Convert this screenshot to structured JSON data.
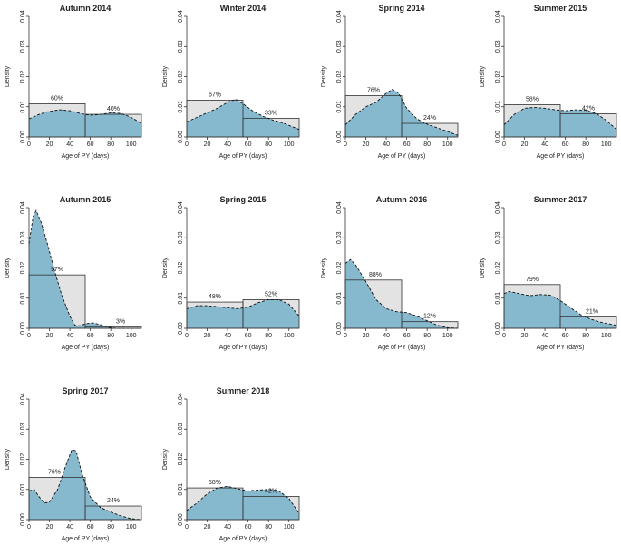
{
  "colors": {
    "bar": "#e3e3e3",
    "density": "#86b8ce",
    "line": "#111111"
  },
  "chart_data": {
    "type": "histogram-density-panels",
    "xlabel": "Age of PY (days)",
    "ylabel": "Density",
    "xlim": [
      0,
      110
    ],
    "ylim": [
      0,
      0.04
    ],
    "xticks": [
      "0",
      "20",
      "40",
      "60",
      "80",
      "100"
    ],
    "yticks": [
      "0.00",
      "0.01",
      "0.02",
      "0.03",
      "0.04"
    ],
    "bins": [
      [
        0,
        55
      ],
      [
        55,
        110
      ]
    ],
    "panels": [
      {
        "title": "Autumn 2014",
        "bars": [
          0.011,
          0.0075
        ],
        "pct": [
          "60%",
          "40%"
        ],
        "density": [
          [
            0,
            0.006
          ],
          [
            10,
            0.0075
          ],
          [
            20,
            0.0085
          ],
          [
            30,
            0.009
          ],
          [
            40,
            0.0087
          ],
          [
            50,
            0.0078
          ],
          [
            60,
            0.0072
          ],
          [
            70,
            0.0075
          ],
          [
            80,
            0.008
          ],
          [
            90,
            0.0078
          ],
          [
            100,
            0.0065
          ],
          [
            110,
            0.0045
          ]
        ]
      },
      {
        "title": "Winter 2014",
        "bars": [
          0.0122,
          0.0062
        ],
        "pct": [
          "67%",
          "33%"
        ],
        "density": [
          [
            0,
            0.005
          ],
          [
            10,
            0.0065
          ],
          [
            20,
            0.008
          ],
          [
            30,
            0.0095
          ],
          [
            40,
            0.0115
          ],
          [
            48,
            0.0125
          ],
          [
            55,
            0.011
          ],
          [
            65,
            0.0085
          ],
          [
            75,
            0.0068
          ],
          [
            85,
            0.0055
          ],
          [
            95,
            0.0045
          ],
          [
            110,
            0.0025
          ]
        ]
      },
      {
        "title": "Spring 2014",
        "bars": [
          0.0137,
          0.0045
        ],
        "pct": [
          "76%",
          "24%"
        ],
        "density": [
          [
            0,
            0.004
          ],
          [
            10,
            0.0075
          ],
          [
            20,
            0.01
          ],
          [
            30,
            0.0115
          ],
          [
            40,
            0.0145
          ],
          [
            46,
            0.0158
          ],
          [
            52,
            0.0145
          ],
          [
            60,
            0.0095
          ],
          [
            70,
            0.006
          ],
          [
            80,
            0.0042
          ],
          [
            90,
            0.003
          ],
          [
            100,
            0.0018
          ],
          [
            110,
            0.0005
          ]
        ]
      },
      {
        "title": "Summer 2015",
        "bars": [
          0.0107,
          0.0077
        ],
        "pct": [
          "58%",
          "42%"
        ],
        "density": [
          [
            0,
            0.004
          ],
          [
            10,
            0.0075
          ],
          [
            20,
            0.0095
          ],
          [
            30,
            0.0098
          ],
          [
            40,
            0.0095
          ],
          [
            50,
            0.009
          ],
          [
            60,
            0.0087
          ],
          [
            70,
            0.009
          ],
          [
            80,
            0.0088
          ],
          [
            90,
            0.0078
          ],
          [
            100,
            0.0055
          ],
          [
            110,
            0.0025
          ]
        ]
      },
      {
        "title": "Autumn 2015",
        "bars": [
          0.0177,
          0.0005
        ],
        "pct": [
          "97%",
          "3%"
        ],
        "density": [
          [
            0,
            0.028
          ],
          [
            4,
            0.037
          ],
          [
            7,
            0.039
          ],
          [
            12,
            0.035
          ],
          [
            18,
            0.028
          ],
          [
            25,
            0.019
          ],
          [
            32,
            0.011
          ],
          [
            40,
            0.004
          ],
          [
            45,
            0.001
          ],
          [
            50,
            0.0008
          ],
          [
            55,
            0.0015
          ],
          [
            62,
            0.0018
          ],
          [
            70,
            0.0012
          ],
          [
            78,
            0.0003
          ],
          [
            85,
            0
          ],
          [
            110,
            0
          ]
        ]
      },
      {
        "title": "Spring 2015",
        "bars": [
          0.0087,
          0.0095
        ],
        "pct": [
          "48%",
          "52%"
        ],
        "density": [
          [
            0,
            0.0065
          ],
          [
            10,
            0.0075
          ],
          [
            20,
            0.0075
          ],
          [
            30,
            0.0072
          ],
          [
            40,
            0.0068
          ],
          [
            50,
            0.0065
          ],
          [
            60,
            0.007
          ],
          [
            70,
            0.0085
          ],
          [
            80,
            0.0095
          ],
          [
            90,
            0.0095
          ],
          [
            100,
            0.008
          ],
          [
            110,
            0.004
          ]
        ]
      },
      {
        "title": "Autumn 2016",
        "bars": [
          0.016,
          0.0022
        ],
        "pct": [
          "88%",
          "12%"
        ],
        "density": [
          [
            0,
            0.0215
          ],
          [
            5,
            0.0228
          ],
          [
            10,
            0.021
          ],
          [
            20,
            0.0155
          ],
          [
            30,
            0.0095
          ],
          [
            40,
            0.0065
          ],
          [
            50,
            0.0055
          ],
          [
            60,
            0.0052
          ],
          [
            70,
            0.004
          ],
          [
            80,
            0.0025
          ],
          [
            90,
            0.001
          ],
          [
            100,
            0.0002
          ],
          [
            110,
            0
          ]
        ]
      },
      {
        "title": "Summer 2017",
        "bars": [
          0.0145,
          0.0038
        ],
        "pct": [
          "79%",
          "21%"
        ],
        "density": [
          [
            0,
            0.0115
          ],
          [
            5,
            0.0122
          ],
          [
            15,
            0.0115
          ],
          [
            25,
            0.0108
          ],
          [
            35,
            0.0112
          ],
          [
            45,
            0.011
          ],
          [
            55,
            0.0092
          ],
          [
            65,
            0.0068
          ],
          [
            75,
            0.0045
          ],
          [
            85,
            0.003
          ],
          [
            95,
            0.002
          ],
          [
            110,
            0.001
          ]
        ]
      },
      {
        "title": "Spring 2017",
        "bars": [
          0.014,
          0.0045
        ],
        "pct": [
          "76%",
          "24%"
        ],
        "density": [
          [
            0,
            0.0095
          ],
          [
            5,
            0.01
          ],
          [
            10,
            0.0075
          ],
          [
            15,
            0.0055
          ],
          [
            20,
            0.0058
          ],
          [
            28,
            0.01
          ],
          [
            35,
            0.017
          ],
          [
            42,
            0.0232
          ],
          [
            46,
            0.0228
          ],
          [
            52,
            0.015
          ],
          [
            60,
            0.0075
          ],
          [
            70,
            0.004
          ],
          [
            80,
            0.0025
          ],
          [
            90,
            0.0012
          ],
          [
            100,
            0.0003
          ],
          [
            110,
            0
          ]
        ]
      },
      {
        "title": "Summer 2018",
        "bars": [
          0.0105,
          0.0077
        ],
        "pct": [
          "58%",
          "42%"
        ],
        "density": [
          [
            0,
            0.003
          ],
          [
            10,
            0.0055
          ],
          [
            20,
            0.0085
          ],
          [
            30,
            0.0105
          ],
          [
            40,
            0.011
          ],
          [
            50,
            0.0102
          ],
          [
            60,
            0.0095
          ],
          [
            70,
            0.0098
          ],
          [
            80,
            0.01
          ],
          [
            90,
            0.0095
          ],
          [
            100,
            0.007
          ],
          [
            110,
            0.002
          ]
        ]
      }
    ]
  }
}
